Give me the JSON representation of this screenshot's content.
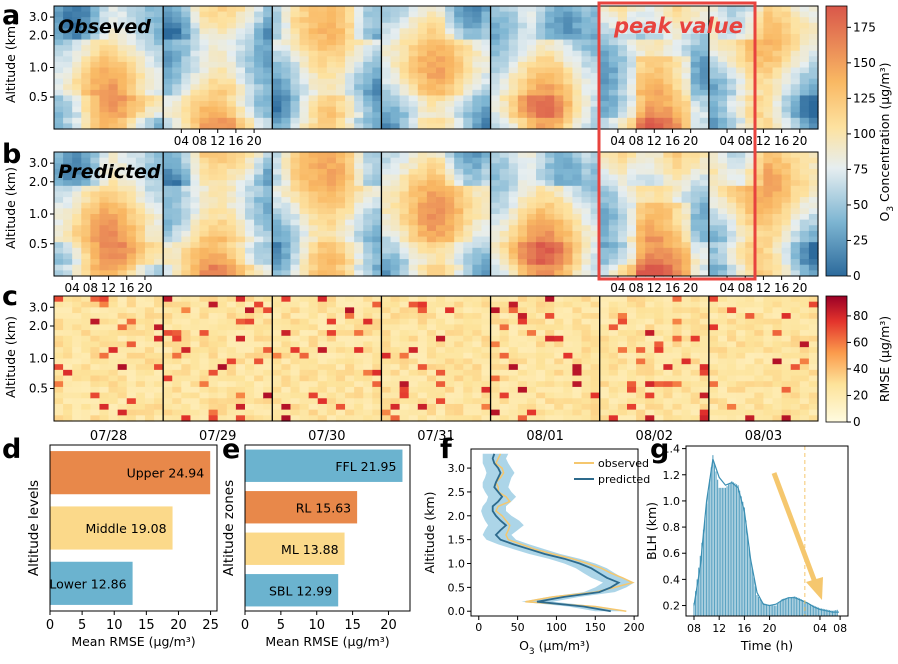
{
  "panel_letters": [
    "a",
    "b",
    "c",
    "d",
    "e",
    "f",
    "g"
  ],
  "heatmaps": {
    "ylabel": "Altitude (km)",
    "yticks": [
      "3.0",
      "2.0",
      "1.0",
      "0.5"
    ],
    "hour_ticks": [
      "04",
      "08",
      "12",
      "16",
      "20"
    ],
    "dates": [
      "07/28",
      "07/29",
      "07/30",
      "07/31",
      "08/01",
      "08/02",
      "08/03"
    ],
    "a_label": "Obseved",
    "b_label": "Predicted",
    "peak_label": "peak value",
    "colorbar_o3": {
      "label": "O$_3$ Concentration (μg/m³)",
      "label_main": "O",
      "label_sub": "3",
      "label_rest": " Concentration (μg/m³)",
      "ticks": [
        "0",
        "25",
        "50",
        "75",
        "100",
        "125",
        "150",
        "175"
      ],
      "min": 0,
      "max": 190
    },
    "colorbar_rmse": {
      "label_main": "RMSE (μg/m³)",
      "ticks": [
        "0",
        "20",
        "40",
        "60",
        "80"
      ],
      "min": 0,
      "max": 95
    }
  },
  "chart_data": [
    {
      "panel": "d",
      "type": "bar",
      "orientation": "horizontal",
      "ylabel": "Altitude levels",
      "xlabel": "Mean RMSE (μg/m³)",
      "categories": [
        "Upper",
        "Middle",
        "Lower"
      ],
      "values": [
        24.94,
        19.08,
        12.86
      ],
      "value_labels": [
        "Upper  24.94",
        "Middle  19.08",
        "Lower  12.86"
      ],
      "colors": [
        "#e8884a",
        "#fbd98a",
        "#6bb3cf"
      ],
      "xlim": [
        0,
        26
      ],
      "xticks": [
        "0",
        "5",
        "10",
        "15",
        "20",
        "25"
      ]
    },
    {
      "panel": "e",
      "type": "bar",
      "orientation": "horizontal",
      "ylabel": "Altitude zones",
      "xlabel": "Mean RMSE (μg/m³)",
      "categories": [
        "FFL",
        "RL",
        "ML",
        "SBL"
      ],
      "values": [
        21.95,
        15.63,
        13.88,
        12.99
      ],
      "value_labels": [
        "FFL  21.95",
        "RL  15.63",
        "ML  13.88",
        "SBL  12.99"
      ],
      "colors": [
        "#6bb3cf",
        "#e8884a",
        "#fbd98a",
        "#6bb3cf"
      ],
      "xlim": [
        0,
        23
      ],
      "xticks": [
        "0",
        "5",
        "10",
        "15",
        "20"
      ]
    },
    {
      "panel": "f",
      "type": "line",
      "ylabel": "Altitude (km)",
      "xlabel_main": "O",
      "xlabel_sub": "3",
      "xlabel_rest": " (μm/m³)",
      "xlim": [
        -10,
        205
      ],
      "ylim": [
        -0.1,
        3.4
      ],
      "xticks": [
        "0",
        "50",
        "100",
        "150",
        "200"
      ],
      "yticks": [
        "0.0",
        "0.5",
        "1.0",
        "1.5",
        "2.0",
        "2.5",
        "3.0"
      ],
      "legend": [
        "observed",
        "predicted"
      ],
      "series": [
        {
          "name": "observed",
          "color": "#f5c76e",
          "altitude": [
            0.0,
            0.1,
            0.2,
            0.3,
            0.4,
            0.5,
            0.6,
            0.7,
            0.8,
            0.9,
            1.0,
            1.1,
            1.2,
            1.3,
            1.4,
            1.5,
            1.6,
            1.7,
            1.8,
            1.9,
            2.0,
            2.1,
            2.2,
            2.3,
            2.4,
            2.5,
            2.6,
            2.7,
            2.8,
            2.9,
            3.0,
            3.1,
            3.2,
            3.3
          ],
          "o3": [
            190,
            150,
            60,
            95,
            150,
            175,
            198,
            185,
            170,
            158,
            140,
            120,
            95,
            72,
            55,
            38,
            35,
            38,
            40,
            35,
            30,
            22,
            25,
            40,
            35,
            25,
            25,
            22,
            28,
            32,
            30,
            22,
            25,
            28
          ]
        },
        {
          "name": "predicted",
          "color": "#2d6a8c",
          "altitude": [
            0.0,
            0.1,
            0.2,
            0.3,
            0.4,
            0.5,
            0.6,
            0.7,
            0.8,
            0.9,
            1.0,
            1.1,
            1.2,
            1.3,
            1.4,
            1.5,
            1.6,
            1.7,
            1.8,
            1.9,
            2.0,
            2.1,
            2.2,
            2.3,
            2.4,
            2.5,
            2.6,
            2.7,
            2.8,
            2.9,
            3.0,
            3.1,
            3.2,
            3.3
          ],
          "o3": [
            170,
            135,
            75,
            110,
            155,
            170,
            180,
            165,
            155,
            145,
            130,
            110,
            85,
            65,
            45,
            28,
            22,
            28,
            35,
            28,
            22,
            18,
            18,
            25,
            30,
            25,
            20,
            22,
            25,
            28,
            25,
            20,
            18,
            20
          ],
          "band_low": [
            150,
            115,
            55,
            90,
            135,
            150,
            160,
            145,
            135,
            125,
            110,
            90,
            65,
            45,
            25,
            10,
            5,
            8,
            12,
            8,
            5,
            3,
            5,
            10,
            12,
            8,
            5,
            5,
            8,
            10,
            8,
            5,
            5,
            5
          ],
          "band_high": [
            190,
            155,
            95,
            130,
            175,
            190,
            200,
            185,
            175,
            165,
            150,
            130,
            105,
            85,
            65,
            48,
            42,
            50,
            58,
            52,
            42,
            35,
            35,
            42,
            48,
            42,
            38,
            40,
            42,
            46,
            42,
            38,
            35,
            38
          ]
        }
      ]
    },
    {
      "panel": "g",
      "type": "bar",
      "ylabel": "BLH (km)",
      "xlabel": "Time (h)",
      "xticks": [
        "08",
        "12",
        "16",
        "20",
        "04",
        "08"
      ],
      "yticks": [
        "0.2",
        "0.4",
        "0.6",
        "0.8",
        "1.0",
        "1.2",
        "1.4"
      ],
      "ylim": [
        0.12,
        1.42
      ],
      "hours_from_08": [
        0,
        1,
        2,
        3,
        4,
        5,
        6,
        7,
        8,
        9,
        10,
        11,
        12,
        13,
        14,
        15,
        16,
        17,
        18,
        19,
        20,
        21,
        22,
        23
      ],
      "values": [
        0.22,
        0.58,
        0.98,
        1.35,
        1.1,
        1.1,
        1.15,
        1.12,
        0.95,
        0.55,
        0.28,
        0.22,
        0.2,
        0.2,
        0.25,
        0.26,
        0.27,
        0.25,
        0.22,
        0.2,
        0.18,
        0.17,
        0.16,
        0.17
      ],
      "curve_values": [
        0.2,
        0.5,
        1.0,
        1.32,
        1.18,
        1.12,
        1.14,
        1.1,
        0.92,
        0.55,
        0.3,
        0.21,
        0.2,
        0.21,
        0.24,
        0.26,
        0.26,
        0.24,
        0.22,
        0.19,
        0.17,
        0.16,
        0.15,
        0.15
      ],
      "dashed_line_hour": 17.6,
      "bar_color": "#5ba3c2",
      "arrow_color": "#f5c76e"
    }
  ]
}
